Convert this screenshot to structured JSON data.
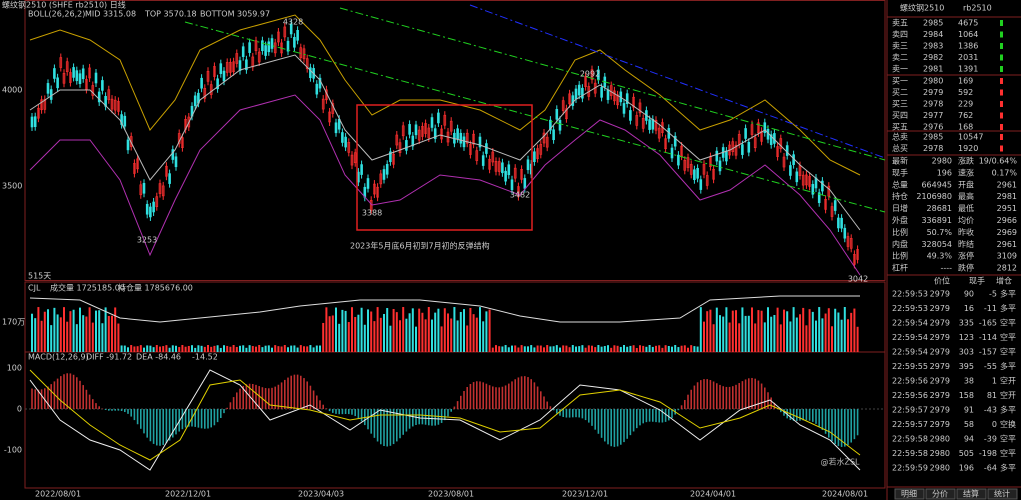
{
  "chart_header": {
    "title": "螺纹钢2510 (SHFE rb2510) 日线",
    "indicator": "BOLL(26,26,2)",
    "mid": "MID 3315.08",
    "top": "TOP 3570.18",
    "bottom": "BOTTOM 3059.97"
  },
  "price_axis": [
    "4000",
    "3500"
  ],
  "price_marks": [
    "4328",
    "3388",
    "3482",
    "3253",
    "2992",
    "3042"
  ],
  "annotation": "2023年5月底6月初到7月初的反弹结构",
  "days_label": "515天",
  "volume_panel": {
    "name": "CJL",
    "volume": "成交量 1725185.00",
    "open_interest": "持仓量 1785676.00",
    "axis": "170万"
  },
  "macd_panel": {
    "name": "MACD(12,26,9)",
    "diff": "DIFF -91.72",
    "dea": "DEA -84.46",
    "macd": "-14.52",
    "axis": [
      "100",
      "0",
      "-100"
    ]
  },
  "dates": [
    "2022/08/01",
    "2022/12/01",
    "2023/04/03",
    "2023/08/01",
    "2023/12/01",
    "2024/04/01",
    "2024/08/01"
  ],
  "quote": {
    "title": "螺纹钢2510",
    "code": "rb2510",
    "asks": [
      [
        "卖五",
        "2985",
        "4675"
      ],
      [
        "卖四",
        "2984",
        "1064"
      ],
      [
        "卖三",
        "2983",
        "1386"
      ],
      [
        "卖二",
        "2982",
        "2031"
      ],
      [
        "卖一",
        "2981",
        "1391"
      ]
    ],
    "bids": [
      [
        "买一",
        "2980",
        "169"
      ],
      [
        "买二",
        "2979",
        "592"
      ],
      [
        "买三",
        "2978",
        "229"
      ],
      [
        "买四",
        "2977",
        "762"
      ],
      [
        "买五",
        "2976",
        "168"
      ]
    ],
    "totals": [
      [
        "总卖",
        "2985",
        "10547"
      ],
      [
        "总买",
        "2978",
        "1920"
      ]
    ],
    "stats": [
      [
        "最新",
        "2980",
        "涨跌",
        "19/0.64%"
      ],
      [
        "现手",
        "196",
        "速涨",
        "0.17%"
      ],
      [
        "总量",
        "664945",
        "开盘",
        "2961"
      ],
      [
        "持仓",
        "2106980",
        "最高",
        "2981"
      ],
      [
        "日增",
        "28681",
        "最低",
        "2951"
      ],
      [
        "外盘",
        "336891",
        "均价",
        "2966"
      ],
      [
        "比例",
        "50.7%",
        "昨收",
        "2969"
      ],
      [
        "内盘",
        "328054",
        "昨结",
        "2961"
      ],
      [
        "比例",
        "49.3%",
        "涨停",
        "3109"
      ],
      [
        "杠杆",
        "----",
        "跌停",
        "2812"
      ]
    ],
    "ticks_header": [
      "价位",
      "现手",
      "增仓"
    ],
    "ticks": [
      [
        "22:59:53",
        "2979",
        "90",
        "-5",
        "多平"
      ],
      [
        "22:59:53",
        "2979",
        "16",
        "-11",
        "多平"
      ],
      [
        "22:59:54",
        "2979",
        "335",
        "-165",
        "空平"
      ],
      [
        "22:59:54",
        "2979",
        "123",
        "-114",
        "空平"
      ],
      [
        "22:59:54",
        "2979",
        "303",
        "-157",
        "空平"
      ],
      [
        "22:59:55",
        "2979",
        "395",
        "-55",
        "多平"
      ],
      [
        "22:59:56",
        "2979",
        "38",
        "1",
        "空开"
      ],
      [
        "22:59:56",
        "2979",
        "158",
        "81",
        "空开"
      ],
      [
        "22:59:57",
        "2979",
        "91",
        "-43",
        "多平"
      ],
      [
        "22:59:57",
        "2979",
        "58",
        "0",
        "空换"
      ],
      [
        "22:59:58",
        "2980",
        "94",
        "-39",
        "空平"
      ],
      [
        "22:59:58",
        "2980",
        "505",
        "-198",
        "空平"
      ],
      [
        "22:59:59",
        "2980",
        "196",
        "-64",
        "多平"
      ]
    ],
    "tabs": [
      "明细",
      "分价",
      "结算",
      "统计"
    ]
  },
  "watermark": "@若水ZSL"
}
